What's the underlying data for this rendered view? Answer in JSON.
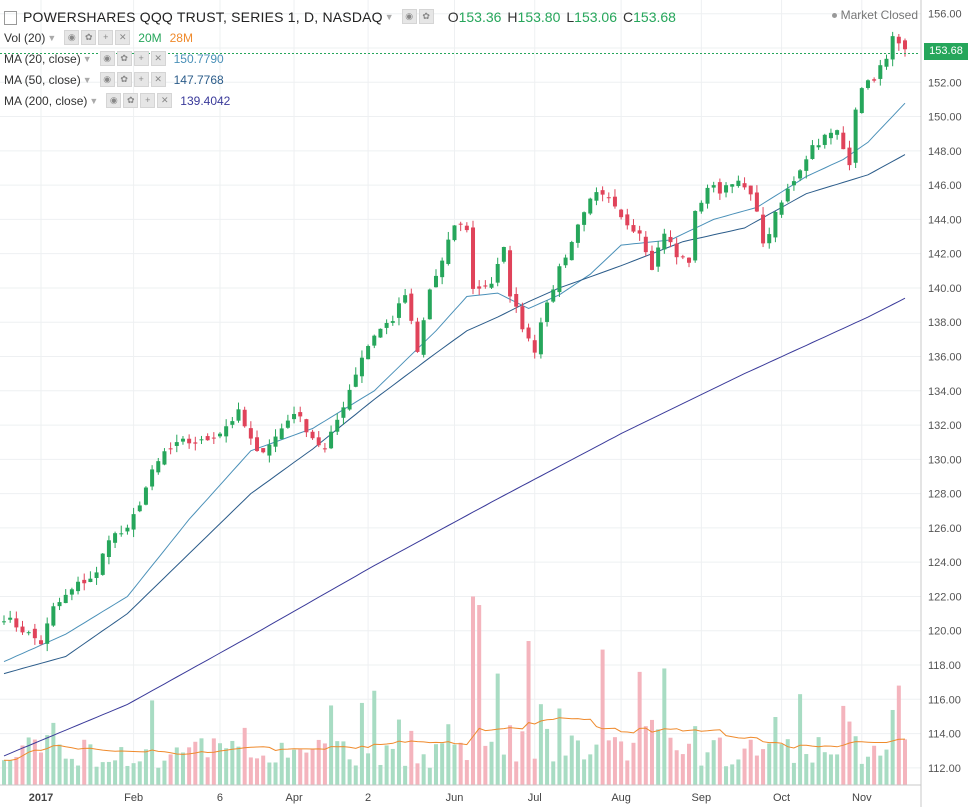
{
  "header": {
    "symbol_title": "POWERSHARES QQQ TRUST, SERIES 1, D, NASDAQ",
    "ohlc": [
      {
        "label": "O",
        "value": "153.36"
      },
      {
        "label": "H",
        "value": "153.80"
      },
      {
        "label": "L",
        "value": "153.06"
      },
      {
        "label": "C",
        "value": "153.68"
      }
    ],
    "market_status": "Market Closed"
  },
  "volume_legend": {
    "label": "Vol (20)",
    "value_1": "20M",
    "value_2": "28M"
  },
  "ma_legend": [
    {
      "label": "MA (20, close)",
      "value": "150.7790",
      "color": "#4a90b8"
    },
    {
      "label": "MA (50, close)",
      "value": "147.7768",
      "color": "#2b5c8a"
    },
    {
      "label": "MA (200, close)",
      "value": "139.4042",
      "color": "#3a3a9a"
    }
  ],
  "last_price_label": "153.68",
  "colors": {
    "up": "#26a65b",
    "down": "#e0435a",
    "vol_up": "#a8dcc3",
    "vol_down": "#f4b4bd",
    "vol_ma": "#ef8a2c",
    "grid": "#eef0f2"
  },
  "chart_data": {
    "type": "candlestick",
    "y_ticks": [
      "156.00",
      "154.00",
      "152.00",
      "150.00",
      "148.00",
      "146.00",
      "144.00",
      "142.00",
      "140.00",
      "138.00",
      "136.00",
      "134.00",
      "132.00",
      "130.00",
      "128.00",
      "126.00",
      "124.00",
      "122.00",
      "120.00",
      "118.00",
      "116.00",
      "114.00",
      "112.00"
    ],
    "ylim": [
      111,
      156.8
    ],
    "x_ticks": [
      "2017",
      "Feb",
      "6",
      "Apr",
      "2",
      "Jun",
      "Jul",
      "Aug",
      "Sep",
      "Oct",
      "Nov"
    ],
    "x_tick_bars": [
      6,
      21,
      35,
      47,
      59,
      73,
      86,
      100,
      113,
      126,
      139
    ],
    "num_bars": 147,
    "anchors": [
      [
        0,
        120.8
      ],
      [
        6,
        119.3
      ],
      [
        8,
        121.3
      ],
      [
        12,
        122.7
      ],
      [
        15,
        123.3
      ],
      [
        17,
        125.5
      ],
      [
        20,
        125.8
      ],
      [
        22,
        127.5
      ],
      [
        24,
        129.2
      ],
      [
        26,
        130.4
      ],
      [
        29,
        131.0
      ],
      [
        32,
        131.0
      ],
      [
        35,
        131.6
      ],
      [
        38,
        132.7
      ],
      [
        41,
        130.3
      ],
      [
        44,
        131.3
      ],
      [
        47,
        132.8
      ],
      [
        50,
        131.3
      ],
      [
        52,
        130.5
      ],
      [
        54,
        132.3
      ],
      [
        56,
        134.1
      ],
      [
        58,
        136.0
      ],
      [
        60,
        137.3
      ],
      [
        63,
        138.2
      ],
      [
        65,
        139.6
      ],
      [
        67,
        136.2
      ],
      [
        69,
        139.9
      ],
      [
        71,
        141.5
      ],
      [
        73,
        143.7
      ],
      [
        75,
        143.5
      ],
      [
        76,
        139.9
      ],
      [
        79,
        140.3
      ],
      [
        81,
        142.2
      ],
      [
        82,
        139.7
      ],
      [
        84,
        137.8
      ],
      [
        86,
        136.4
      ],
      [
        87,
        138.2
      ],
      [
        88,
        138.9
      ],
      [
        90,
        141.2
      ],
      [
        92,
        142.7
      ],
      [
        94,
        144.6
      ],
      [
        96,
        145.4
      ],
      [
        98,
        145.1
      ],
      [
        100,
        144.0
      ],
      [
        103,
        143.3
      ],
      [
        105,
        141.3
      ],
      [
        107,
        143.3
      ],
      [
        109,
        141.8
      ],
      [
        111,
        141.6
      ],
      [
        112,
        144.3
      ],
      [
        114,
        145.9
      ],
      [
        116,
        145.7
      ],
      [
        118,
        146.3
      ],
      [
        120,
        145.8
      ],
      [
        122,
        144.7
      ],
      [
        123,
        142.4
      ],
      [
        125,
        144.2
      ],
      [
        127,
        145.7
      ],
      [
        129,
        147.0
      ],
      [
        131,
        148.3
      ],
      [
        133,
        148.8
      ],
      [
        135,
        149.1
      ],
      [
        136,
        148.1
      ],
      [
        137,
        147.4
      ],
      [
        138,
        150.6
      ],
      [
        140,
        152.3
      ],
      [
        141,
        152.0
      ],
      [
        143,
        153.6
      ],
      [
        144,
        154.5
      ],
      [
        146,
        153.68
      ]
    ],
    "ma_anchors": {
      "ma20": [
        [
          0,
          118.2
        ],
        [
          10,
          119.8
        ],
        [
          20,
          122.0
        ],
        [
          30,
          126.5
        ],
        [
          40,
          130.5
        ],
        [
          50,
          131.8
        ],
        [
          60,
          134.0
        ],
        [
          70,
          137.5
        ],
        [
          75,
          139.5
        ],
        [
          80,
          139.7
        ],
        [
          85,
          138.8
        ],
        [
          90,
          139.6
        ],
        [
          95,
          140.8
        ],
        [
          100,
          142.5
        ],
        [
          108,
          142.8
        ],
        [
          115,
          144.0
        ],
        [
          122,
          144.7
        ],
        [
          130,
          146.5
        ],
        [
          136,
          147.5
        ],
        [
          140,
          148.5
        ],
        [
          146,
          150.78
        ]
      ],
      "ma50": [
        [
          0,
          117.5
        ],
        [
          10,
          118.5
        ],
        [
          20,
          121.0
        ],
        [
          30,
          124.5
        ],
        [
          40,
          128.0
        ],
        [
          50,
          130.6
        ],
        [
          60,
          133.5
        ],
        [
          70,
          136.2
        ],
        [
          75,
          137.5
        ],
        [
          80,
          138.3
        ],
        [
          85,
          139.2
        ],
        [
          90,
          140.0
        ],
        [
          100,
          141.3
        ],
        [
          110,
          142.7
        ],
        [
          120,
          143.5
        ],
        [
          130,
          145.5
        ],
        [
          140,
          146.6
        ],
        [
          146,
          147.78
        ]
      ],
      "ma200": [
        [
          0,
          112.7
        ],
        [
          20,
          115.7
        ],
        [
          40,
          119.7
        ],
        [
          60,
          123.8
        ],
        [
          80,
          127.7
        ],
        [
          100,
          131.5
        ],
        [
          120,
          135.0
        ],
        [
          140,
          138.3
        ],
        [
          146,
          139.4
        ]
      ]
    },
    "volume": {
      "axis_units": "price-axis overlay",
      "max_bar_value_on_axis": 122.0,
      "base": 111.0
    }
  }
}
